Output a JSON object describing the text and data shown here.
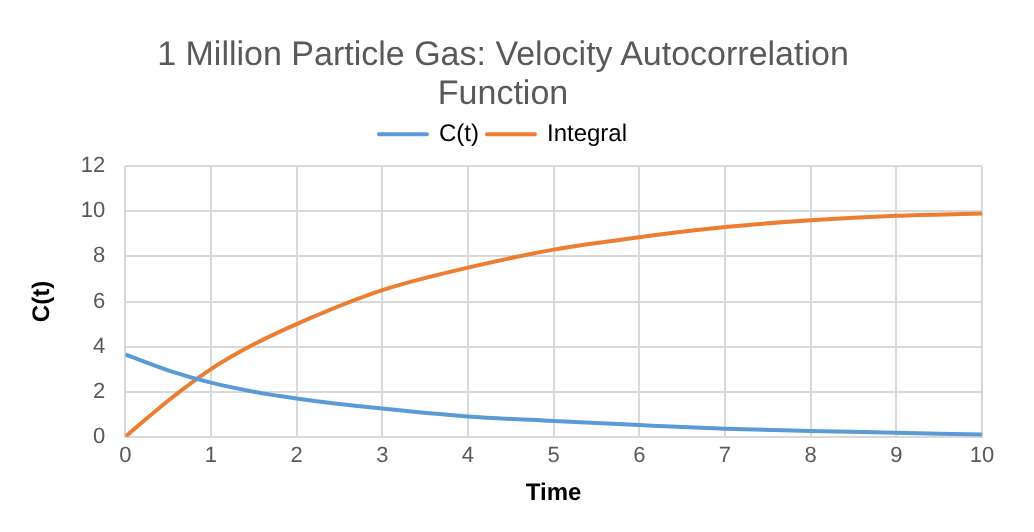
{
  "chart_data": {
    "type": "line",
    "title": "1 Million Particle Gas: Velocity Autocorrelation Function",
    "xlabel": "Time",
    "ylabel": "C(t)",
    "x": [
      0,
      0.5,
      1,
      1.5,
      2,
      3,
      4,
      5,
      6,
      7,
      8,
      9,
      10
    ],
    "series": [
      {
        "name": "C(t)",
        "color": "#5b9bd5",
        "values": [
          3.65,
          2.95,
          2.4,
          2.0,
          1.7,
          1.25,
          0.9,
          0.7,
          0.52,
          0.36,
          0.26,
          0.18,
          0.1
        ]
      },
      {
        "name": "Integral",
        "color": "#ed7d31",
        "values": [
          0,
          1.6,
          3.0,
          4.1,
          5.0,
          6.5,
          7.5,
          8.3,
          8.85,
          9.3,
          9.6,
          9.8,
          9.9
        ]
      }
    ],
    "xlim": [
      0,
      10
    ],
    "xticks": [
      0,
      1,
      2,
      3,
      4,
      5,
      6,
      7,
      8,
      9,
      10
    ],
    "ylim": [
      0,
      12
    ],
    "yticks": [
      0,
      2,
      4,
      6,
      8,
      10,
      12
    ],
    "grid": true,
    "legend": "top",
    "marker": "none",
    "line_style": "solid"
  }
}
